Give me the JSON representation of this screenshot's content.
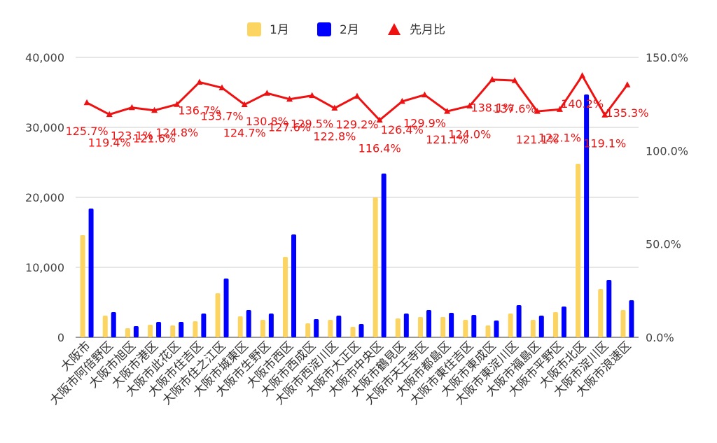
{
  "chart_data": {
    "type": "bar",
    "categories": [
      "大阪市",
      "大阪市阿倍野区",
      "大阪市旭区",
      "大阪市港区",
      "大阪市此花区",
      "大阪市住吉区",
      "大阪市住之江区",
      "大阪市城東区",
      "大阪市生野区",
      "大阪市西区",
      "大阪市西成区",
      "大阪市西淀川区",
      "大阪市大正区",
      "大阪市中央区",
      "大阪市鶴見区",
      "大阪市天王寺区",
      "大阪市都島区",
      "大阪市東住吉区",
      "大阪市東成区",
      "大阪市東淀川区",
      "大阪市福島区",
      "大阪市平野区",
      "大阪市北区",
      "大阪市淀川区",
      "大阪市浪速区"
    ],
    "series": [
      {
        "name": "1月",
        "type": "bar",
        "axis": "left",
        "color": "#fcd462",
        "values": [
          14600,
          3100,
          1300,
          1800,
          1700,
          2300,
          6300,
          3000,
          2500,
          11500,
          2000,
          2500,
          1500,
          20000,
          2700,
          2900,
          2900,
          2500,
          1700,
          3400,
          2500,
          3600,
          24800,
          6900,
          3900
        ]
      },
      {
        "name": "2月",
        "type": "bar",
        "axis": "left",
        "color": "#0000ff",
        "values": [
          18400,
          3600,
          1600,
          2200,
          2200,
          3400,
          8400,
          3900,
          3400,
          14700,
          2600,
          3100,
          1900,
          23400,
          3400,
          3900,
          3500,
          3200,
          2400,
          4600,
          3100,
          4400,
          34700,
          8200,
          5300
        ]
      },
      {
        "name": "先月比",
        "type": "line",
        "axis": "right",
        "color": "#ee1111",
        "values": [
          125.7,
          119.4,
          123.1,
          121.6,
          124.8,
          136.7,
          133.7,
          124.7,
          130.8,
          127.6,
          129.5,
          122.8,
          129.2,
          116.4,
          126.4,
          129.9,
          121.1,
          124.0,
          138.1,
          137.6,
          121.1,
          122.1,
          140.2,
          119.1,
          135.3
        ],
        "labels": [
          "125.7%",
          "119.4%",
          "123.1%",
          "121.6%",
          "124.8%",
          "136.7%",
          "133.7%",
          "124.7%",
          "130.8%",
          "127.6%",
          "129.5%",
          "122.8%",
          "129.2%",
          "116.4%",
          "126.4%",
          "129.9%",
          "121.1%",
          "124.0%",
          "138.1%",
          "137.6%",
          "121.1%",
          "122.1%",
          "140.2%",
          "119.1%",
          "135.3%"
        ]
      }
    ],
    "y_left": {
      "min": 0,
      "max": 40000,
      "ticks": [
        "0",
        "10,000",
        "20,000",
        "30,000",
        "40,000"
      ]
    },
    "y_right": {
      "min": 0,
      "max": 150,
      "ticks": [
        "0.0%",
        "50.0%",
        "100.0%",
        "150.0%"
      ]
    },
    "grid": true,
    "legend": "top-center"
  }
}
